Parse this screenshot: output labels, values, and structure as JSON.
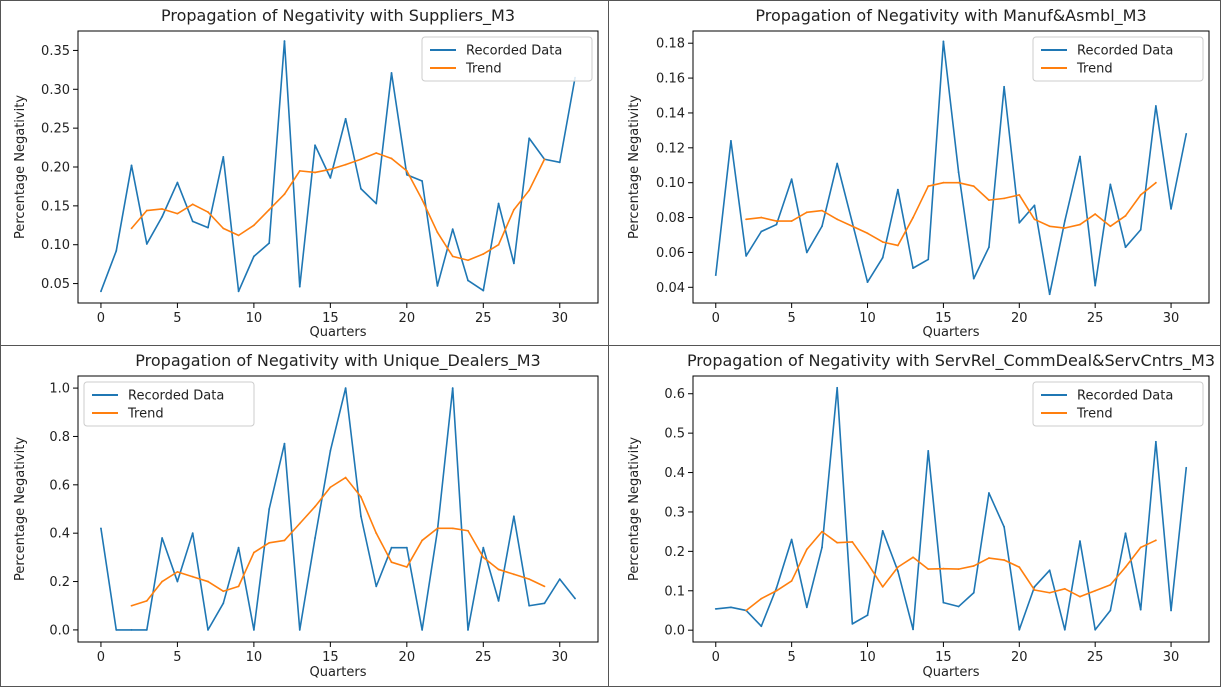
{
  "chart_data": [
    {
      "type": "line",
      "title": "Propagation of Negativity with Suppliers_M3",
      "xlabel": "Quarters",
      "ylabel": "Percentage Negativity",
      "xlim": [
        -1.5,
        32.5
      ],
      "ylim": [
        0.025,
        0.375
      ],
      "xticks": [
        0,
        5,
        10,
        15,
        20,
        25,
        30
      ],
      "yticks": [
        0.05,
        0.1,
        0.15,
        0.2,
        0.25,
        0.3,
        0.35
      ],
      "ytick_labels": [
        "0.05",
        "0.10",
        "0.15",
        "0.20",
        "0.25",
        "0.30",
        "0.35"
      ],
      "legend": "top-right",
      "series": [
        {
          "name": "Recorded Data",
          "color": "#1f77b4",
          "x_start": 0,
          "values": [
            0.04,
            0.092,
            0.202,
            0.101,
            0.136,
            0.18,
            0.13,
            0.122,
            0.213,
            0.04,
            0.085,
            0.102,
            0.362,
            0.046,
            0.228,
            0.186,
            0.262,
            0.172,
            0.153,
            0.321,
            0.19,
            0.182,
            0.047,
            0.12,
            0.054,
            0.041,
            0.153,
            0.076,
            0.237,
            0.21,
            0.206,
            0.315
          ]
        },
        {
          "name": "Trend",
          "color": "#ff7f0e",
          "x_start": 2,
          "values": [
            0.121,
            0.144,
            0.146,
            0.14,
            0.152,
            0.142,
            0.121,
            0.112,
            0.125,
            0.145,
            0.165,
            0.195,
            0.193,
            0.197,
            0.203,
            0.21,
            0.218,
            0.211,
            0.195,
            0.158,
            0.116,
            0.085,
            0.08,
            0.088,
            0.1,
            0.145,
            0.17,
            0.21
          ]
        }
      ]
    },
    {
      "type": "line",
      "title": "Propagation of Negativity with Manuf&Asmbl_M3",
      "xlabel": "Quarters",
      "ylabel": "Percentage Negativity",
      "xlim": [
        -1.5,
        32.5
      ],
      "ylim": [
        0.031,
        0.187
      ],
      "xticks": [
        0,
        5,
        10,
        15,
        20,
        25,
        30
      ],
      "yticks": [
        0.04,
        0.06,
        0.08,
        0.1,
        0.12,
        0.14,
        0.16,
        0.18
      ],
      "ytick_labels": [
        "0.04",
        "0.06",
        "0.08",
        "0.10",
        "0.12",
        "0.14",
        "0.16",
        "0.18"
      ],
      "legend": "top-right",
      "series": [
        {
          "name": "Recorded Data",
          "color": "#1f77b4",
          "x_start": 0,
          "values": [
            0.047,
            0.124,
            0.058,
            0.072,
            0.076,
            0.102,
            0.06,
            0.075,
            0.111,
            0.077,
            0.043,
            0.057,
            0.096,
            0.051,
            0.056,
            0.181,
            0.106,
            0.045,
            0.063,
            0.155,
            0.077,
            0.087,
            0.036,
            0.078,
            0.115,
            0.041,
            0.099,
            0.063,
            0.073,
            0.144,
            0.085,
            0.128
          ]
        },
        {
          "name": "Trend",
          "color": "#ff7f0e",
          "x_start": 2,
          "values": [
            0.079,
            0.08,
            0.078,
            0.078,
            0.083,
            0.084,
            0.079,
            0.075,
            0.071,
            0.066,
            0.064,
            0.08,
            0.098,
            0.1,
            0.1,
            0.098,
            0.09,
            0.091,
            0.093,
            0.079,
            0.075,
            0.074,
            0.076,
            0.082,
            0.075,
            0.081,
            0.093,
            0.1
          ]
        }
      ]
    },
    {
      "type": "line",
      "title": "Propagation of Negativity with Unique_Dealers_M3",
      "xlabel": "Quarters",
      "ylabel": "Percentage Negativity",
      "xlim": [
        -1.5,
        32.5
      ],
      "ylim": [
        -0.05,
        1.05
      ],
      "xticks": [
        0,
        5,
        10,
        15,
        20,
        25,
        30
      ],
      "yticks": [
        0.0,
        0.2,
        0.4,
        0.6,
        0.8,
        1.0
      ],
      "ytick_labels": [
        "0.0",
        "0.2",
        "0.4",
        "0.6",
        "0.8",
        "1.0"
      ],
      "legend": "top-left",
      "series": [
        {
          "name": "Recorded Data",
          "color": "#1f77b4",
          "x_start": 0,
          "values": [
            0.42,
            0.0,
            0.0,
            0.0,
            0.38,
            0.2,
            0.4,
            0.0,
            0.11,
            0.34,
            0.0,
            0.5,
            0.77,
            0.0,
            0.38,
            0.74,
            1.0,
            0.47,
            0.18,
            0.34,
            0.34,
            0.0,
            0.41,
            1.0,
            0.0,
            0.34,
            0.12,
            0.47,
            0.1,
            0.11,
            0.21,
            0.13
          ]
        },
        {
          "name": "Trend",
          "color": "#ff7f0e",
          "x_start": 2,
          "values": [
            0.1,
            0.12,
            0.2,
            0.24,
            0.22,
            0.2,
            0.16,
            0.18,
            0.32,
            0.36,
            0.37,
            0.44,
            0.51,
            0.59,
            0.63,
            0.55,
            0.4,
            0.28,
            0.26,
            0.37,
            0.42,
            0.42,
            0.41,
            0.3,
            0.25,
            0.23,
            0.21,
            0.18
          ]
        }
      ]
    },
    {
      "type": "line",
      "title": "Propagation of Negativity with ServRel_CommDeal&ServCntrs_M3",
      "xlabel": "Quarters",
      "ylabel": "Percentage Negativity",
      "xlim": [
        -1.5,
        32.5
      ],
      "ylim": [
        -0.03,
        0.645
      ],
      "xticks": [
        0,
        5,
        10,
        15,
        20,
        25,
        30
      ],
      "yticks": [
        0.0,
        0.1,
        0.2,
        0.3,
        0.4,
        0.5,
        0.6
      ],
      "ytick_labels": [
        "0.0",
        "0.1",
        "0.2",
        "0.3",
        "0.4",
        "0.5",
        "0.6"
      ],
      "legend": "top-right",
      "series": [
        {
          "name": "Recorded Data",
          "color": "#1f77b4",
          "x_start": 0,
          "values": [
            0.054,
            0.058,
            0.05,
            0.01,
            0.107,
            0.23,
            0.058,
            0.21,
            0.615,
            0.016,
            0.038,
            0.252,
            0.15,
            0.002,
            0.455,
            0.07,
            0.06,
            0.095,
            0.348,
            0.262,
            0.001,
            0.11,
            0.152,
            0.001,
            0.226,
            0.001,
            0.05,
            0.246,
            0.052,
            0.478,
            0.05,
            0.412
          ]
        },
        {
          "name": "Trend",
          "color": "#ff7f0e",
          "x_start": 2,
          "values": [
            0.05,
            0.08,
            0.1,
            0.125,
            0.205,
            0.25,
            0.222,
            0.224,
            0.17,
            0.11,
            0.16,
            0.185,
            0.155,
            0.156,
            0.155,
            0.163,
            0.183,
            0.178,
            0.16,
            0.102,
            0.095,
            0.105,
            0.085,
            0.1,
            0.115,
            0.16,
            0.21,
            0.228
          ]
        }
      ]
    }
  ]
}
